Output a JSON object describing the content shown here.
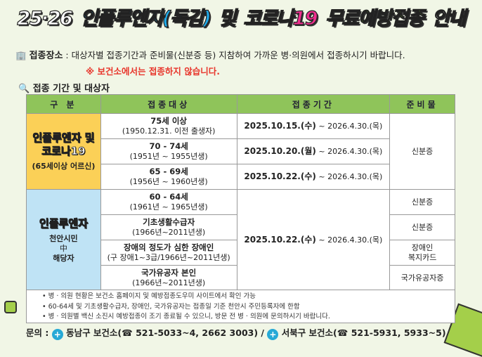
{
  "title": {
    "p1": "25·26",
    "p2": "인플루엔자(독감)",
    "p3": "및",
    "p4": "코로나19",
    "p5": "무료예방접종",
    "p6": "안내"
  },
  "place": {
    "label": "접종장소",
    "text": ": 대상자별 접종기간과 준비물(신분증 등) 지참하여 가까운 병·의원에서 접종하시기 바랍니다.",
    "warning": "※ 보건소에서는 접종하지 않습니다."
  },
  "section_title": "접종 기간 및 대상자",
  "table": {
    "headers": [
      "구 분",
      "접종대상",
      "접종기간",
      "준비물"
    ],
    "group1": {
      "name1": "인플루엔자 및",
      "name2": "코로나19",
      "sub": "(65세이상 어르신)"
    },
    "group2": {
      "name": "인플루엔자",
      "sub1": "천안시민",
      "sub2": "中",
      "sub3": "해당자"
    },
    "rows": [
      {
        "target": "75세 이상",
        "detail": "(1950.12.31. 이전 출생자)",
        "period_start": "2025.10.15.(수)",
        "period_end": " ~ 2026.4.30.(목)"
      },
      {
        "target": "70 - 74세",
        "detail": "(1951년 ~ 1955년생)",
        "period_start": "2025.10.20.(월)",
        "period_end": " ~ 2026.4.30.(목)"
      },
      {
        "target": "65 - 69세",
        "detail": "(1956년 ~ 1960년생)",
        "period_start": "2025.10.22.(수)",
        "period_end": " ~ 2026.4.30.(목)"
      },
      {
        "target": "60 - 64세",
        "detail": "(1961년 ~ 1965년생)",
        "period_start": "2025.10.22.(수)",
        "period_end": " ~ 2026.4.30.(목)"
      },
      {
        "target": "기초생활수급자",
        "detail": "(1966년~2011년생)"
      },
      {
        "target": "장애의 정도가 심한 장애인",
        "detail": "(구 장애1~3급/1966년~2011년생)"
      },
      {
        "target": "국가유공자 본인",
        "detail": "(1966년~2011년생)"
      }
    ],
    "docs": {
      "g1": "신분증",
      "r4": "신분증",
      "r5": "신분증",
      "r6a": "장애인",
      "r6b": "복지카드",
      "r7": "국가유공자증"
    }
  },
  "notes": [
    "• 병 · 의원 현황은 보건소 홈페이지 및 예방접종도우미 사이트에서 확인 가능",
    "• 60-64세 및 기초생활수급자, 장애인, 국가유공자는 접종일 기준 천안시 주민등록자에 한함",
    "• 병 · 의원별 백신 소진시 예방접종이 조기 종료될 수 있으니, 방문 전 병 · 의원에 문의하시기 바랍니다."
  ],
  "contact": {
    "label": "문의 :",
    "c1": "동남구 보건소(☎ 521-5033~4, 2662 3003)",
    "sep": " / ",
    "c2": "서북구 보건소(☎ 521-5931, 5933~5)"
  }
}
